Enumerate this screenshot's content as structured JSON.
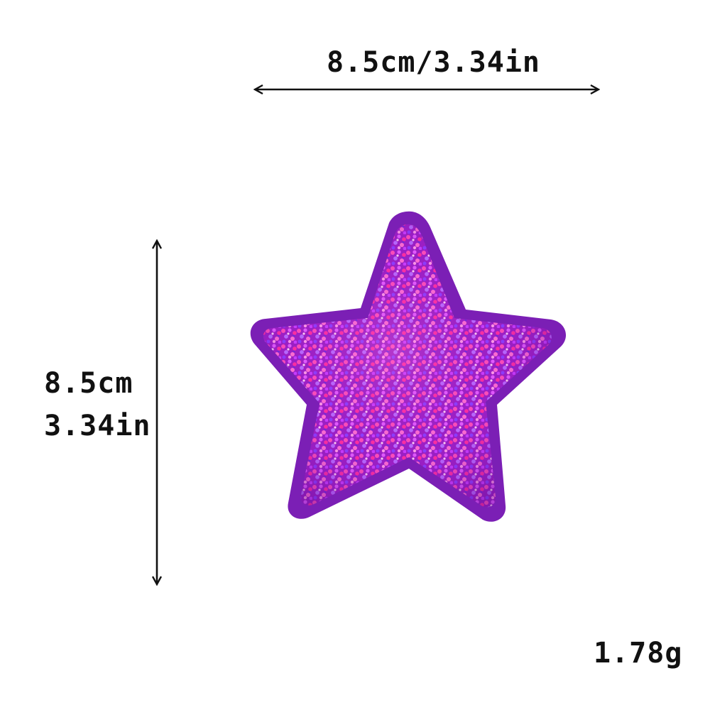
{
  "dimensions": {
    "width_label": "8.5cm/3.34in",
    "height_label_cm": "8.5cm",
    "height_label_in": "3.34in"
  },
  "product": {
    "name_icon": "glitter-star-patch-icon",
    "weight_label": "1.78g",
    "colors": {
      "felt_border": "#7b1fb5",
      "glitter_base": "#a020c8",
      "glitter_pink": "#ff3fb0",
      "glitter_violet": "#8a3dff"
    }
  }
}
